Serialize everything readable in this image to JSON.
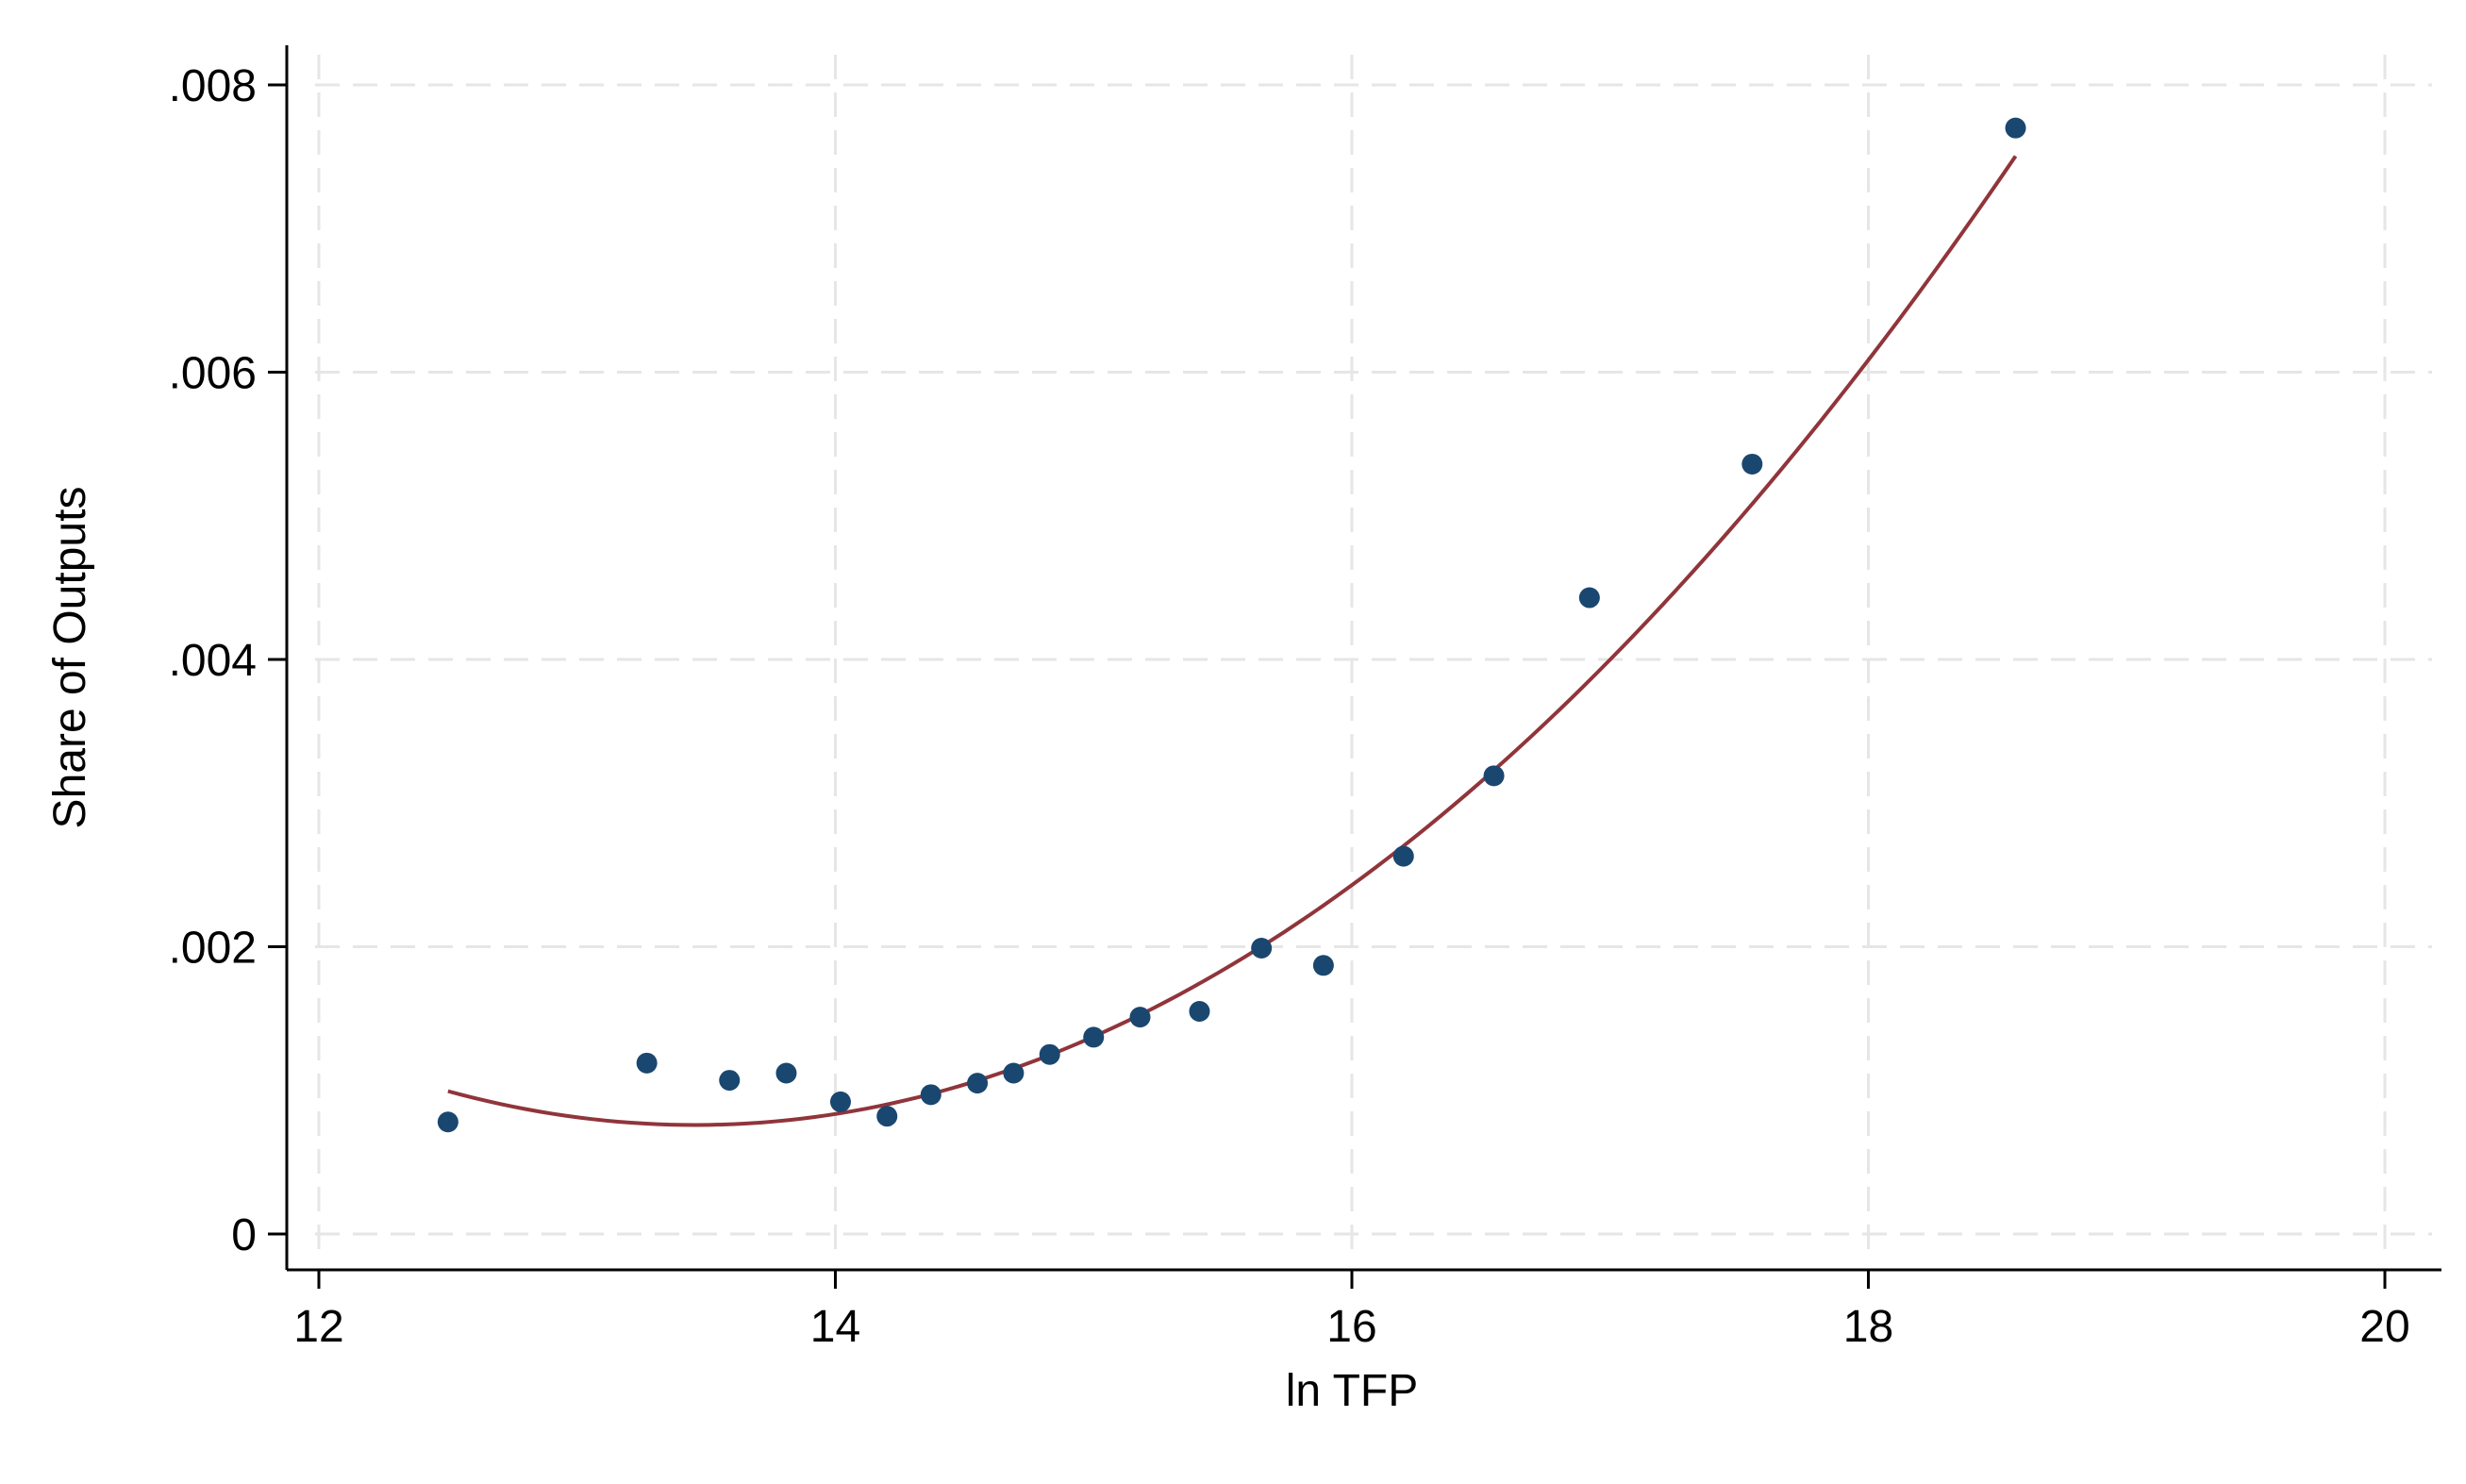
{
  "chart_data": {
    "type": "scatter",
    "title": "",
    "xlabel": "ln TFP",
    "ylabel": "Share of Outputs",
    "xlim": [
      12,
      20
    ],
    "ylim": [
      0,
      0.008
    ],
    "x_ticks": [
      {
        "value": 12,
        "label": "12"
      },
      {
        "value": 14,
        "label": "14"
      },
      {
        "value": 16,
        "label": "16"
      },
      {
        "value": 18,
        "label": "18"
      },
      {
        "value": 20,
        "label": "20"
      }
    ],
    "y_ticks": [
      {
        "value": 0,
        "label": "0"
      },
      {
        "value": 0.002,
        "label": ".002"
      },
      {
        "value": 0.004,
        "label": ".004"
      },
      {
        "value": 0.006,
        "label": ".006"
      },
      {
        "value": 0.008,
        "label": ".008"
      }
    ],
    "grid": true,
    "series": [
      {
        "kind": "scatter",
        "color": "#1a476f",
        "points": [
          {
            "x": 12.5,
            "y": 0.00078
          },
          {
            "x": 13.27,
            "y": 0.00119
          },
          {
            "x": 13.59,
            "y": 0.00107
          },
          {
            "x": 13.81,
            "y": 0.00112
          },
          {
            "x": 14.02,
            "y": 0.00092
          },
          {
            "x": 14.2,
            "y": 0.00082
          },
          {
            "x": 14.37,
            "y": 0.00097
          },
          {
            "x": 14.55,
            "y": 0.00105
          },
          {
            "x": 14.69,
            "y": 0.00112
          },
          {
            "x": 14.83,
            "y": 0.00125
          },
          {
            "x": 15.0,
            "y": 0.00137
          },
          {
            "x": 15.18,
            "y": 0.00151
          },
          {
            "x": 15.41,
            "y": 0.00155
          },
          {
            "x": 15.65,
            "y": 0.00199
          },
          {
            "x": 15.89,
            "y": 0.00187
          },
          {
            "x": 16.2,
            "y": 0.00263
          },
          {
            "x": 16.55,
            "y": 0.00319
          },
          {
            "x": 16.92,
            "y": 0.00443
          },
          {
            "x": 17.55,
            "y": 0.00536
          },
          {
            "x": 18.57,
            "y": 0.0077
          }
        ]
      },
      {
        "kind": "quadratic-fit",
        "color": "#90353b",
        "x_range": [
          12.5,
          18.57
        ],
        "points": [
          {
            "x": 12.5,
            "y": 0.00097
          },
          {
            "x": 13.4,
            "y": 0.00078
          },
          {
            "x": 14.0,
            "y": 0.00086
          },
          {
            "x": 15.0,
            "y": 0.00137
          },
          {
            "x": 16.0,
            "y": 0.00242
          },
          {
            "x": 17.0,
            "y": 0.00398
          },
          {
            "x": 18.0,
            "y": 0.00608
          },
          {
            "x": 18.57,
            "y": 0.00752
          }
        ]
      }
    ]
  }
}
